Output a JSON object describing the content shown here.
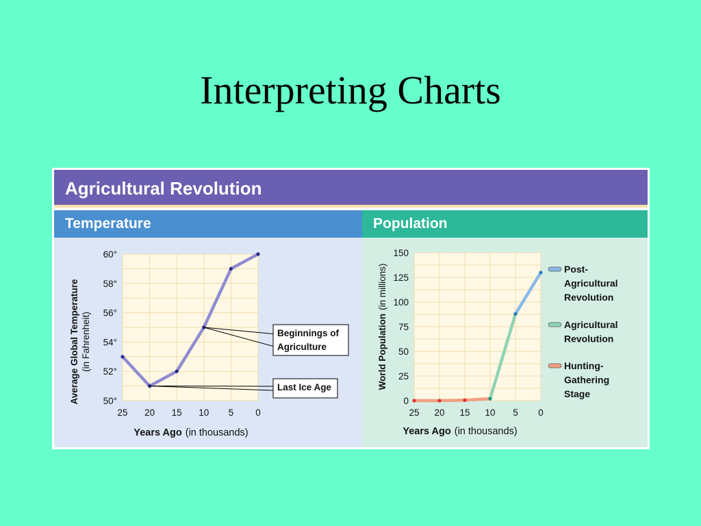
{
  "slide": {
    "title": "Interpreting Charts"
  },
  "figure": {
    "title": "Agricultural Revolution",
    "colors": {
      "banner": "#6a5fb0",
      "temperature_header": "#4a8fd0",
      "population_header": "#2db89a"
    }
  },
  "chart_data": [
    {
      "type": "line",
      "title": "Temperature",
      "ylabel_bold": "Average Global Temperature",
      "ylabel_paren": "(in Fahrenheit)",
      "xlabel_bold": "Years Ago",
      "xlabel_paren": "(in thousands)",
      "x_ticks": [
        "25",
        "20",
        "15",
        "10",
        "5",
        "0"
      ],
      "y_ticks": [
        "60°",
        "58°",
        "56°",
        "54°",
        "52°",
        "50°"
      ],
      "xlim": [
        25,
        0
      ],
      "ylim": [
        50,
        60
      ],
      "grid": true,
      "series": [
        {
          "color": "#8f8cd2",
          "x": [
            25,
            20,
            15,
            10,
            5,
            0
          ],
          "y": [
            53,
            51,
            52,
            55,
            59,
            60
          ]
        }
      ],
      "annotations": [
        {
          "text": [
            "Beginnings of",
            "Agriculture"
          ],
          "target": {
            "x": 10,
            "y": 55
          }
        },
        {
          "text": [
            "Last Ice Age"
          ],
          "target": {
            "x": 20,
            "y": 51
          }
        }
      ]
    },
    {
      "type": "line",
      "title": "Population",
      "ylabel_bold": "World Population",
      "ylabel_paren": "(in millions)",
      "xlabel_bold": "Years Ago",
      "xlabel_paren": "(in thousands)",
      "x_ticks": [
        "25",
        "20",
        "15",
        "10",
        "5",
        "0"
      ],
      "y_ticks": [
        "150",
        "125",
        "100",
        "75",
        "50",
        "25",
        "0"
      ],
      "xlim": [
        25,
        0
      ],
      "ylim": [
        0,
        150
      ],
      "grid": true,
      "series": [
        {
          "name": [
            "Hunting-",
            "Gathering",
            "Stage"
          ],
          "color": "#f0a080",
          "dot_color": "#e03030",
          "x": [
            25,
            20,
            15,
            10
          ],
          "y": [
            0,
            0,
            0.5,
            2
          ]
        },
        {
          "name": [
            "Agricultural",
            "Revolution"
          ],
          "color": "#8fd4b4",
          "dot_color": "#1f9a7c",
          "x": [
            10,
            5
          ],
          "y": [
            2,
            88
          ]
        },
        {
          "name": [
            "Post-",
            "Agricultural",
            "Revolution"
          ],
          "color": "#8ab8e8",
          "dot_color": "#2a7ac0",
          "x": [
            5,
            0
          ],
          "y": [
            88,
            130
          ]
        }
      ],
      "legend_placement": "right"
    }
  ]
}
